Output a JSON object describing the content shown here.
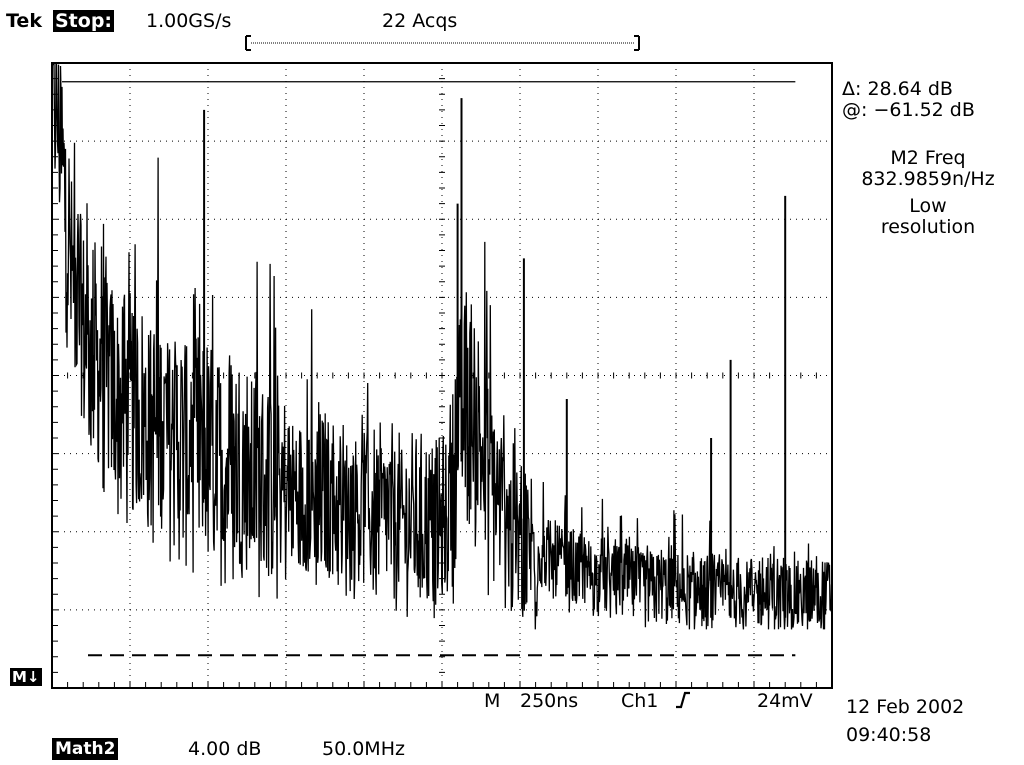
{
  "header": {
    "brand": "Tek",
    "run_state": "Stop:",
    "sample_rate": "1.00GS/s",
    "acquisitions": "22 Acqs"
  },
  "readouts": {
    "delta": "Δ: 28.64 dB",
    "at": "@: −61.52 dB",
    "math_title": "M2 Freq",
    "math_value": "832.9859n/Hz",
    "resolution_line1": "Low",
    "resolution_line2": "resolution"
  },
  "reference_marker": "M↓",
  "bottom_bar": {
    "m_label": "M",
    "timebase": "250ns",
    "channel": "Ch1",
    "trigger_level": "24mV",
    "date": "12 Feb 2002",
    "time": "09:40:58"
  },
  "math_channel": {
    "label": "Math2",
    "scale": "4.00 dB",
    "span": "50.0MHz"
  },
  "colors": {
    "trace": "#000000",
    "background": "#ffffff",
    "grid": "#000000"
  },
  "chart_data": {
    "type": "line",
    "x_divisions": 10,
    "y_divisions": 8,
    "ylim": [
      0,
      8
    ],
    "xlim": [
      0,
      10
    ],
    "grid": true,
    "cursor_upper_div": 7.76,
    "cursor_lower_div": 0.42,
    "series": [
      {
        "values": [
          8.0,
          7.2,
          6.2,
          5.3,
          4.9,
          4.6,
          4.3,
          4.1,
          4.0,
          3.8,
          3.7,
          3.6,
          3.5,
          3.5,
          3.4,
          3.4,
          3.3,
          3.3,
          3.2,
          3.2,
          3.1,
          3.1,
          3.0,
          3.0,
          3.0,
          2.9,
          2.9,
          2.8,
          2.8,
          2.8,
          2.7,
          2.7,
          2.7,
          2.6,
          2.6,
          2.6,
          2.5,
          2.5,
          2.5,
          2.5,
          2.4,
          2.4,
          2.4,
          2.4,
          2.3,
          2.3,
          2.3,
          2.3,
          2.2,
          2.2,
          2.2,
          2.2,
          2.2,
          2.1,
          2.1,
          2.1,
          2.1,
          2.1,
          2.0,
          2.0,
          2.2,
          2.5,
          3.2,
          3.7,
          3.5,
          3.2,
          2.9,
          2.6,
          2.4,
          2.2,
          2.0,
          1.9,
          1.8,
          1.8,
          1.7,
          1.7,
          1.6,
          1.6,
          1.6,
          1.5,
          1.5,
          1.5,
          1.5,
          1.4,
          1.4,
          1.4,
          1.4,
          1.4,
          1.4,
          1.3,
          1.3,
          1.3,
          1.3,
          1.3,
          1.3,
          1.3,
          1.3,
          1.2,
          1.2,
          1.2,
          1.2,
          1.2,
          1.2,
          1.2,
          1.2,
          1.2,
          1.2,
          1.2,
          1.2,
          1.2,
          1.2,
          1.2,
          1.2,
          1.2,
          1.2,
          1.2,
          1.2,
          1.2,
          1.2,
          1.2
        ]
      }
    ],
    "peaks": [
      {
        "x": 1.95,
        "y": 7.4
      },
      {
        "x": 5.25,
        "y": 7.55
      },
      {
        "x": 5.2,
        "y": 6.2
      },
      {
        "x": 6.05,
        "y": 5.5
      },
      {
        "x": 6.6,
        "y": 3.7
      },
      {
        "x": 8.45,
        "y": 3.2
      },
      {
        "x": 9.4,
        "y": 6.3
      },
      {
        "x": 8.7,
        "y": 4.2
      }
    ]
  }
}
